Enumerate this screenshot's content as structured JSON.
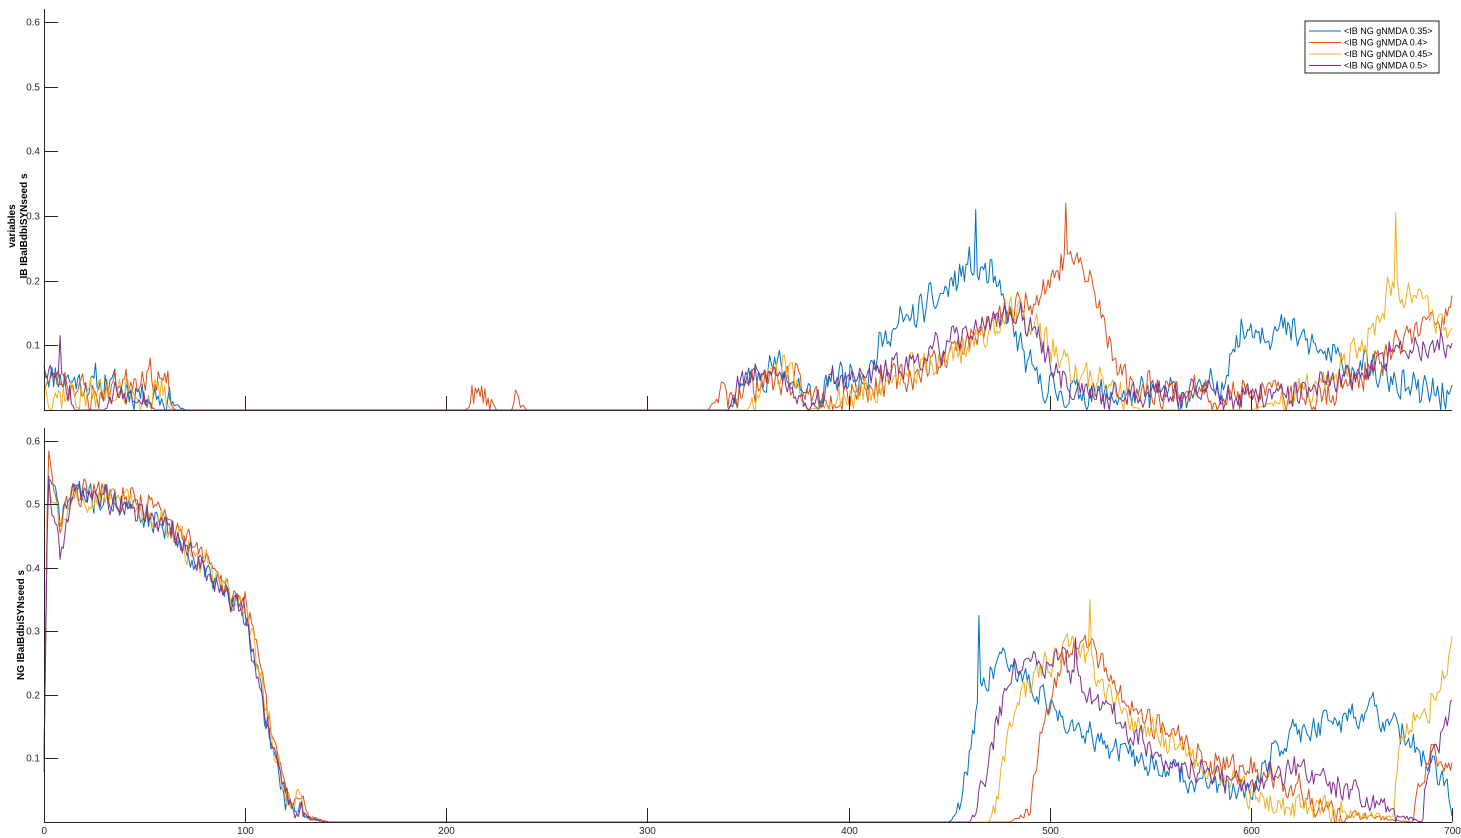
{
  "chart_data": [
    {
      "type": "line",
      "ylabel_lines": [
        "variables",
        "IB IBaIBdbiSYNseed s"
      ],
      "xlim": [
        0,
        700
      ],
      "ylim": [
        0,
        0.62
      ],
      "yticks": [
        0.1,
        0.2,
        0.3,
        0.4,
        0.5,
        0.6
      ],
      "ytick_labels": [
        "0.1",
        "0.2",
        "0.3",
        "0.4",
        "0.5",
        "0.6"
      ],
      "xticks": [
        100,
        200,
        300,
        400,
        500,
        600
      ],
      "grid": false,
      "legend": {
        "placement": "top-right",
        "entries": [
          "<IB NG gNMDA 0.35>",
          "<IB NG gNMDA 0.4>",
          "<IB NG gNMDA 0.45>",
          "<IB NG gNMDA 0.5>"
        ]
      },
      "series": [
        {
          "name": "<IB NG gNMDA 0.35>",
          "color": "#0072BD",
          "seed": 11,
          "envelope": [
            [
              0,
              0.06
            ],
            [
              20,
              0.04
            ],
            [
              30,
              0.04
            ],
            [
              60,
              0.02
            ],
            [
              70,
              0.0
            ],
            [
              340,
              0.0
            ],
            [
              350,
              0.05
            ],
            [
              365,
              0.07
            ],
            [
              380,
              0.02
            ],
            [
              385,
              0.0
            ],
            [
              390,
              0.05
            ],
            [
              410,
              0.06
            ],
            [
              420,
              0.12
            ],
            [
              440,
              0.16
            ],
            [
              460,
              0.22
            ],
            [
              470,
              0.21
            ],
            [
              480,
              0.14
            ],
            [
              490,
              0.06
            ],
            [
              500,
              0.03
            ],
            [
              540,
              0.02
            ],
            [
              585,
              0.03
            ],
            [
              590,
              0.1
            ],
            [
              600,
              0.13
            ],
            [
              620,
              0.12
            ],
            [
              640,
              0.08
            ],
            [
              660,
              0.06
            ],
            [
              680,
              0.03
            ],
            [
              700,
              0.02
            ]
          ],
          "noise": 0.035,
          "peak": [
            463,
            0.31
          ]
        },
        {
          "name": "<IB NG gNMDA 0.4>",
          "color": "#D95319",
          "seed": 23,
          "envelope": [
            [
              0,
              0.04
            ],
            [
              10,
              0.05
            ],
            [
              25,
              0.02
            ],
            [
              30,
              0.03
            ],
            [
              50,
              0.06
            ],
            [
              60,
              0.04
            ],
            [
              65,
              0.0
            ],
            [
              210,
              0.0
            ],
            [
              213,
              0.02
            ],
            [
              222,
              0.02
            ],
            [
              225,
              0.0
            ],
            [
              232,
              0.0
            ],
            [
              235,
              0.02
            ],
            [
              240,
              0.0
            ],
            [
              330,
              0.0
            ],
            [
              335,
              0.02
            ],
            [
              350,
              0.04
            ],
            [
              370,
              0.05
            ],
            [
              380,
              0.02
            ],
            [
              430,
              0.05
            ],
            [
              460,
              0.11
            ],
            [
              480,
              0.15
            ],
            [
              500,
              0.2
            ],
            [
              510,
              0.24
            ],
            [
              520,
              0.2
            ],
            [
              530,
              0.1
            ],
            [
              540,
              0.04
            ],
            [
              560,
              0.03
            ],
            [
              600,
              0.02
            ],
            [
              640,
              0.03
            ],
            [
              660,
              0.06
            ],
            [
              680,
              0.12
            ],
            [
              700,
              0.15
            ]
          ],
          "noise": 0.035,
          "peak": [
            508,
            0.32
          ]
        },
        {
          "name": "<IB NG gNMDA 0.45>",
          "color": "#EDB120",
          "seed": 37,
          "envelope": [
            [
              0,
              0.03
            ],
            [
              20,
              0.02
            ],
            [
              30,
              0.03
            ],
            [
              60,
              0.02
            ],
            [
              65,
              0.0
            ],
            [
              350,
              0.0
            ],
            [
              355,
              0.04
            ],
            [
              370,
              0.06
            ],
            [
              380,
              0.0
            ],
            [
              420,
              0.04
            ],
            [
              460,
              0.1
            ],
            [
              480,
              0.15
            ],
            [
              495,
              0.12
            ],
            [
              510,
              0.06
            ],
            [
              530,
              0.04
            ],
            [
              545,
              0.0
            ],
            [
              600,
              0.0
            ],
            [
              640,
              0.04
            ],
            [
              660,
              0.12
            ],
            [
              670,
              0.2
            ],
            [
              680,
              0.18
            ],
            [
              700,
              0.12
            ]
          ],
          "noise": 0.035,
          "peak": [
            672,
            0.305
          ]
        },
        {
          "name": "<IB NG gNMDA 0.5>",
          "color": "#7E2F8E",
          "seed": 53,
          "envelope": [
            [
              0,
              0.07
            ],
            [
              10,
              0.06
            ],
            [
              15,
              0.0
            ],
            [
              30,
              0.0
            ],
            [
              35,
              0.03
            ],
            [
              50,
              0.03
            ],
            [
              55,
              0.0
            ],
            [
              340,
              0.0
            ],
            [
              345,
              0.04
            ],
            [
              365,
              0.06
            ],
            [
              375,
              0.03
            ],
            [
              380,
              0.0
            ],
            [
              390,
              0.04
            ],
            [
              420,
              0.06
            ],
            [
              450,
              0.1
            ],
            [
              470,
              0.14
            ],
            [
              485,
              0.15
            ],
            [
              500,
              0.08
            ],
            [
              510,
              0.03
            ],
            [
              530,
              0.02
            ],
            [
              550,
              0.03
            ],
            [
              590,
              0.02
            ],
            [
              620,
              0.02
            ],
            [
              640,
              0.04
            ],
            [
              660,
              0.07
            ],
            [
              680,
              0.1
            ],
            [
              700,
              0.1
            ]
          ],
          "noise": 0.03,
          "peak": [
            8,
            0.115
          ]
        }
      ]
    },
    {
      "type": "line",
      "ylabel_lines": [
        "NG IBaIBdbiSYNseed s"
      ],
      "xlim": [
        0,
        700
      ],
      "ylim": [
        0,
        0.62
      ],
      "yticks": [
        0.1,
        0.2,
        0.3,
        0.4,
        0.5,
        0.6
      ],
      "ytick_labels": [
        "0.1",
        "0.2",
        "0.3",
        "0.4",
        "0.5",
        "0.6"
      ],
      "xticks": [
        0,
        100,
        200,
        300,
        400,
        500,
        600,
        700
      ],
      "xtick_labels": [
        "0",
        "100",
        "200",
        "300",
        "400",
        "500",
        "600",
        "700"
      ],
      "grid": false,
      "series": [
        {
          "color": "#0072BD",
          "seed": 71,
          "envelope": [
            [
              0,
              0.1
            ],
            [
              2,
              0.55
            ],
            [
              8,
              0.48
            ],
            [
              15,
              0.52
            ],
            [
              40,
              0.5
            ],
            [
              60,
              0.47
            ],
            [
              80,
              0.4
            ],
            [
              95,
              0.34
            ],
            [
              100,
              0.33
            ],
            [
              110,
              0.16
            ],
            [
              120,
              0.04
            ],
            [
              130,
              0.01
            ],
            [
              140,
              0.0
            ],
            [
              450,
              0.0
            ],
            [
              455,
              0.02
            ],
            [
              465,
              0.2
            ],
            [
              475,
              0.26
            ],
            [
              490,
              0.22
            ],
            [
              500,
              0.18
            ],
            [
              520,
              0.14
            ],
            [
              540,
              0.1
            ],
            [
              560,
              0.08
            ],
            [
              580,
              0.06
            ],
            [
              600,
              0.04
            ],
            [
              610,
              0.1
            ],
            [
              620,
              0.14
            ],
            [
              640,
              0.16
            ],
            [
              660,
              0.18
            ],
            [
              680,
              0.12
            ],
            [
              700,
              0.04
            ]
          ],
          "noise": 0.03,
          "peak": [
            465,
            0.325
          ]
        },
        {
          "color": "#D95319",
          "seed": 83,
          "envelope": [
            [
              0,
              0.08
            ],
            [
              2,
              0.58
            ],
            [
              8,
              0.46
            ],
            [
              15,
              0.52
            ],
            [
              40,
              0.52
            ],
            [
              60,
              0.48
            ],
            [
              80,
              0.41
            ],
            [
              95,
              0.36
            ],
            [
              102,
              0.33
            ],
            [
              112,
              0.16
            ],
            [
              122,
              0.04
            ],
            [
              132,
              0.01
            ],
            [
              142,
              0.0
            ],
            [
              480,
              0.0
            ],
            [
              490,
              0.02
            ],
            [
              495,
              0.14
            ],
            [
              505,
              0.24
            ],
            [
              515,
              0.3
            ],
            [
              525,
              0.26
            ],
            [
              540,
              0.18
            ],
            [
              560,
              0.14
            ],
            [
              580,
              0.1
            ],
            [
              600,
              0.08
            ],
            [
              620,
              0.05
            ],
            [
              640,
              0.02
            ],
            [
              680,
              0.0
            ],
            [
              690,
              0.12
            ],
            [
              700,
              0.08
            ]
          ],
          "noise": 0.03,
          "peak": [
            10,
            0.61
          ]
        },
        {
          "color": "#EDB120",
          "seed": 97,
          "envelope": [
            [
              0,
              0.1
            ],
            [
              2,
              0.56
            ],
            [
              8,
              0.47
            ],
            [
              15,
              0.52
            ],
            [
              40,
              0.51
            ],
            [
              60,
              0.47
            ],
            [
              80,
              0.4
            ],
            [
              95,
              0.35
            ],
            [
              101,
              0.33
            ],
            [
              111,
              0.16
            ],
            [
              121,
              0.04
            ],
            [
              131,
              0.01
            ],
            [
              141,
              0.0
            ],
            [
              470,
              0.0
            ],
            [
              475,
              0.05
            ],
            [
              480,
              0.16
            ],
            [
              495,
              0.24
            ],
            [
              510,
              0.28
            ],
            [
              520,
              0.25
            ],
            [
              540,
              0.16
            ],
            [
              560,
              0.12
            ],
            [
              580,
              0.08
            ],
            [
              600,
              0.04
            ],
            [
              620,
              0.02
            ],
            [
              670,
              0.01
            ],
            [
              675,
              0.14
            ],
            [
              685,
              0.16
            ],
            [
              695,
              0.22
            ],
            [
              700,
              0.28
            ]
          ],
          "noise": 0.03,
          "peak": [
            520,
            0.35
          ]
        },
        {
          "color": "#7E2F8E",
          "seed": 109,
          "envelope": [
            [
              0,
              0.1
            ],
            [
              2,
              0.55
            ],
            [
              8,
              0.42
            ],
            [
              15,
              0.52
            ],
            [
              40,
              0.5
            ],
            [
              60,
              0.47
            ],
            [
              80,
              0.4
            ],
            [
              95,
              0.34
            ],
            [
              100,
              0.33
            ],
            [
              110,
              0.16
            ],
            [
              120,
              0.04
            ],
            [
              130,
              0.01
            ],
            [
              140,
              0.0
            ],
            [
              460,
              0.0
            ],
            [
              465,
              0.04
            ],
            [
              470,
              0.1
            ],
            [
              480,
              0.24
            ],
            [
              495,
              0.26
            ],
            [
              510,
              0.24
            ],
            [
              525,
              0.18
            ],
            [
              540,
              0.14
            ],
            [
              560,
              0.1
            ],
            [
              580,
              0.07
            ],
            [
              600,
              0.06
            ],
            [
              620,
              0.08
            ],
            [
              640,
              0.06
            ],
            [
              660,
              0.03
            ],
            [
              685,
              0.0
            ],
            [
              690,
              0.1
            ],
            [
              700,
              0.18
            ]
          ],
          "noise": 0.028,
          "peak": [
            513,
            0.29
          ]
        }
      ]
    }
  ]
}
